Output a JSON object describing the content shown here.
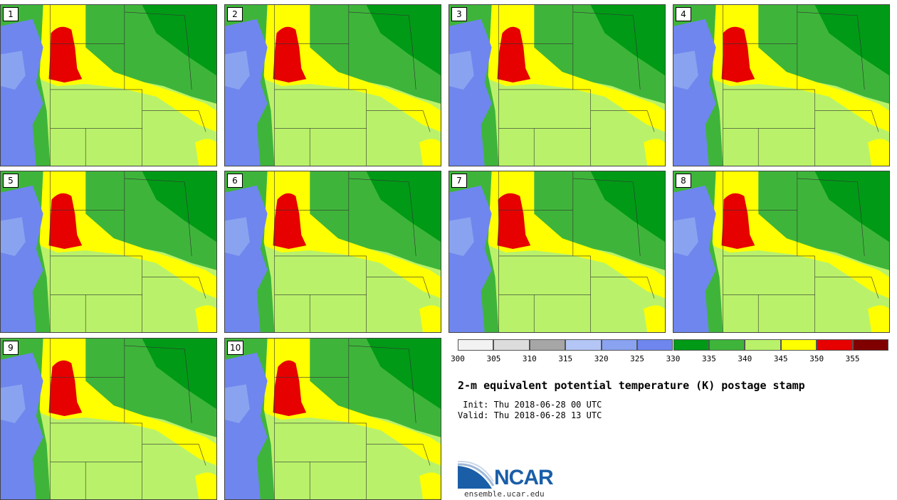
{
  "members": [
    {
      "label": "1"
    },
    {
      "label": "2"
    },
    {
      "label": "3"
    },
    {
      "label": "4"
    },
    {
      "label": "5"
    },
    {
      "label": "6"
    },
    {
      "label": "7"
    },
    {
      "label": "8"
    },
    {
      "label": "9"
    },
    {
      "label": "10"
    }
  ],
  "colorbar": {
    "ticks": [
      "300",
      "305",
      "310",
      "315",
      "320",
      "325",
      "330",
      "335",
      "340",
      "345",
      "350",
      "355"
    ],
    "colors": [
      "#f2f2f2",
      "#dcdcdc",
      "#a6a6a6",
      "#b3c6f5",
      "#8aa3f0",
      "#6f86ee",
      "#009a16",
      "#3eb53a",
      "#b9f26a",
      "#ffff00",
      "#e60000",
      "#800000"
    ]
  },
  "title": "2-m equivalent potential temperature (K) postage stamp",
  "init_line": " Init: Thu 2018-06-28 00 UTC",
  "valid_line": "Valid: Thu 2018-06-28 13 UTC",
  "logo": {
    "name": "NCAR",
    "url": "ensemble.ucar.edu"
  }
}
